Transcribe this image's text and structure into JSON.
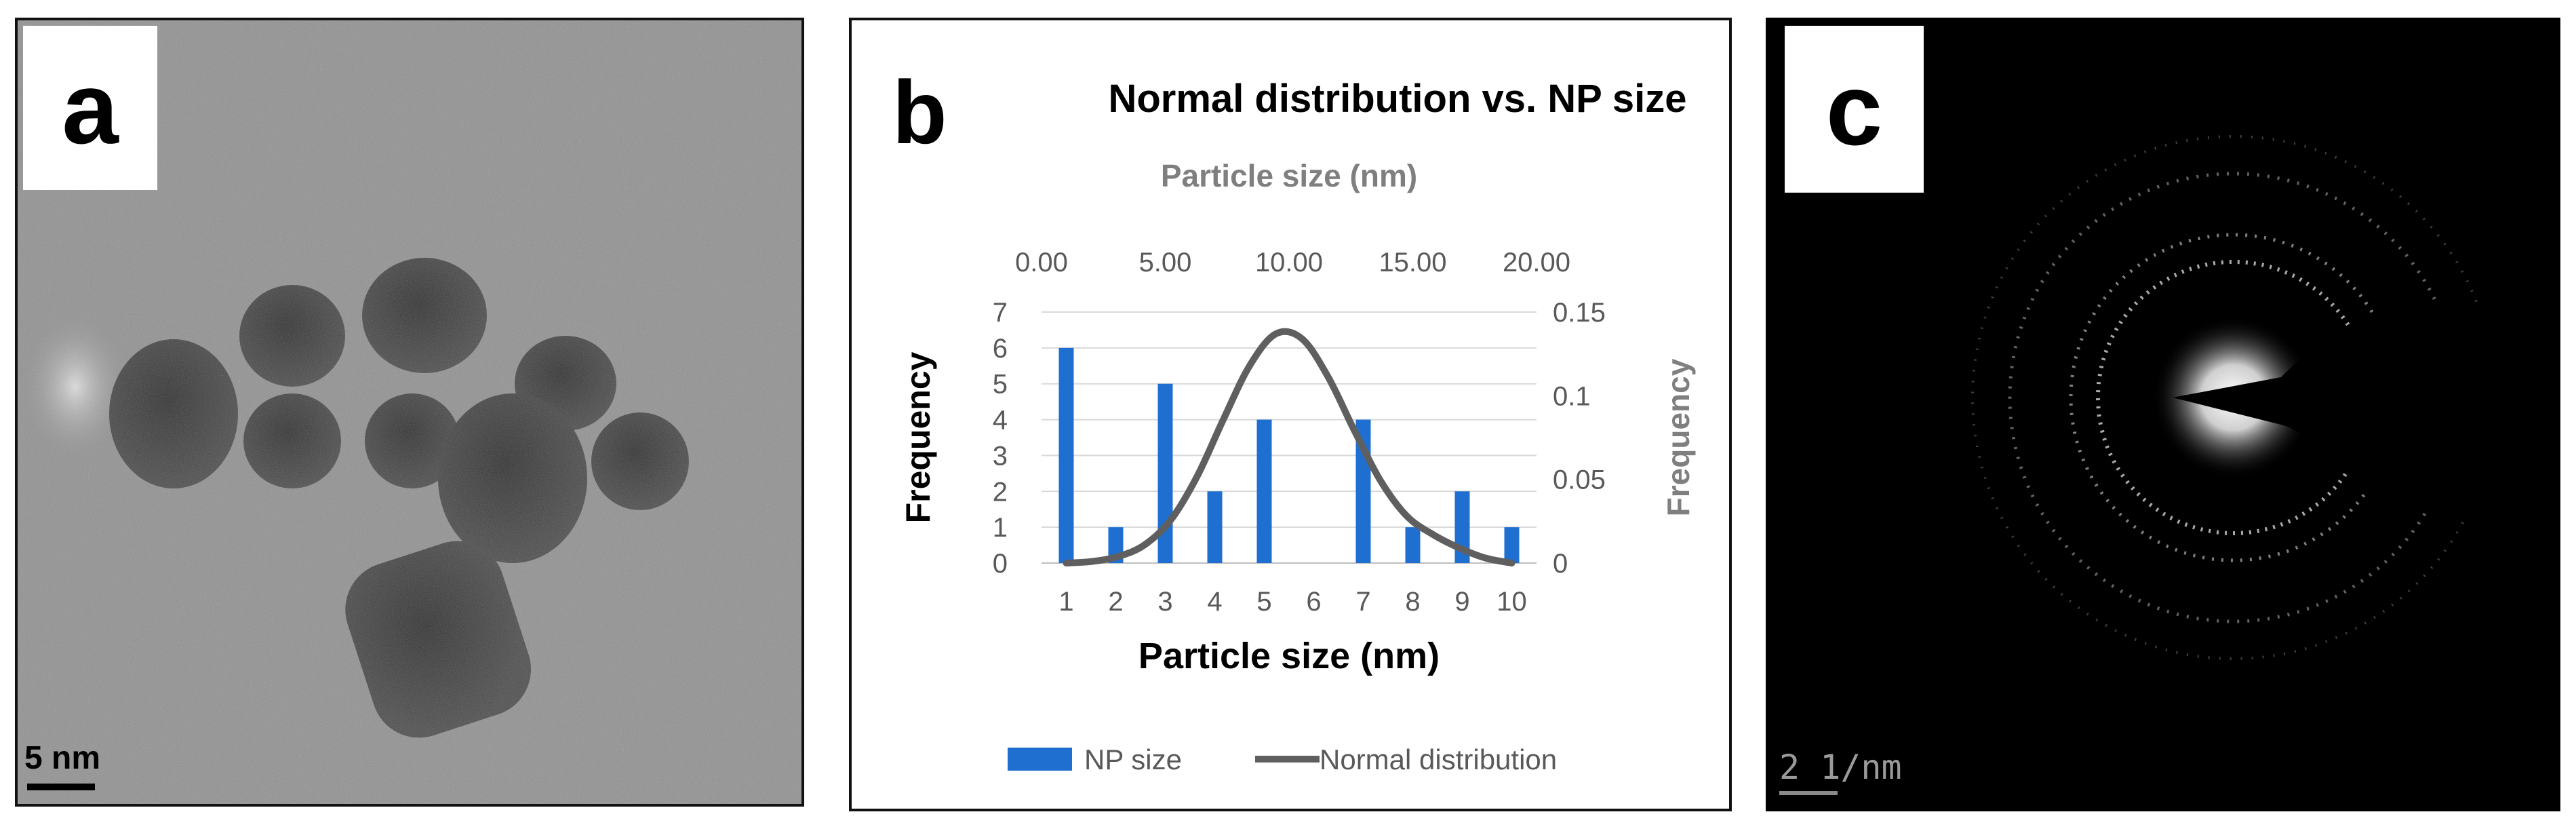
{
  "panel_a": {
    "label": "a",
    "scale_bar": "5 nm"
  },
  "panel_c": {
    "label": "c",
    "scale_bar": "2 1/nm"
  },
  "panel_b": {
    "label": "b"
  },
  "chart_data": {
    "type": "bar",
    "title": "Normal distribution vs. NP size",
    "xlabel": "Particle size (nm)",
    "ylabel": "Frequency",
    "categories": [
      "1",
      "2",
      "3",
      "4",
      "5",
      "6",
      "7",
      "8",
      "9",
      "10"
    ],
    "ylim": [
      0,
      7
    ],
    "yticks": [
      "0",
      "1",
      "2",
      "3",
      "4",
      "5",
      "6",
      "7"
    ],
    "series": [
      {
        "name": "NP size",
        "color": "#1f6fd1",
        "values": [
          6,
          1,
          5,
          2,
          4,
          0,
          4,
          1,
          2,
          1
        ]
      }
    ],
    "secondary": {
      "name": "Normal distribution",
      "type": "line",
      "color": "#5f5f5f",
      "x2label": "Particle size (nm)",
      "y2label": "Frequency",
      "x2lim": [
        0,
        20
      ],
      "x2ticks": [
        "0.00",
        "5.00",
        "10.00",
        "15.00",
        "20.00"
      ],
      "y2lim": [
        0,
        0.15
      ],
      "y2ticks": [
        "0",
        "0.05",
        "0.1",
        "0.15"
      ],
      "x": [
        1.0,
        2.0,
        3.0,
        4.0,
        5.0,
        6.0,
        7.0,
        8.0,
        9.0,
        10.0,
        11.0,
        12.0,
        13.0,
        14.0,
        15.0,
        16.0,
        17.0,
        18.0
      ],
      "y": [
        0.0,
        0.001,
        0.004,
        0.011,
        0.026,
        0.052,
        0.086,
        0.118,
        0.137,
        0.134,
        0.111,
        0.079,
        0.049,
        0.028,
        0.017,
        0.009,
        0.003,
        0.0
      ]
    },
    "legend": [
      "NP size",
      "Normal distribution"
    ],
    "legend_position": "bottom"
  }
}
